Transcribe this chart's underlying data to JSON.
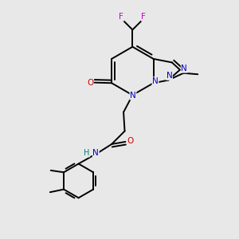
{
  "bg_color": "#e8e8e8",
  "atom_colors": {
    "C": "#000000",
    "N": "#0000cc",
    "O": "#cc0000",
    "F": "#cc00cc",
    "H": "#008080"
  },
  "bond_color": "#000000",
  "linewidth": 1.4,
  "figsize": [
    3.0,
    3.0
  ],
  "dpi": 100,
  "xlim": [
    0,
    10
  ],
  "ylim": [
    0,
    10
  ]
}
